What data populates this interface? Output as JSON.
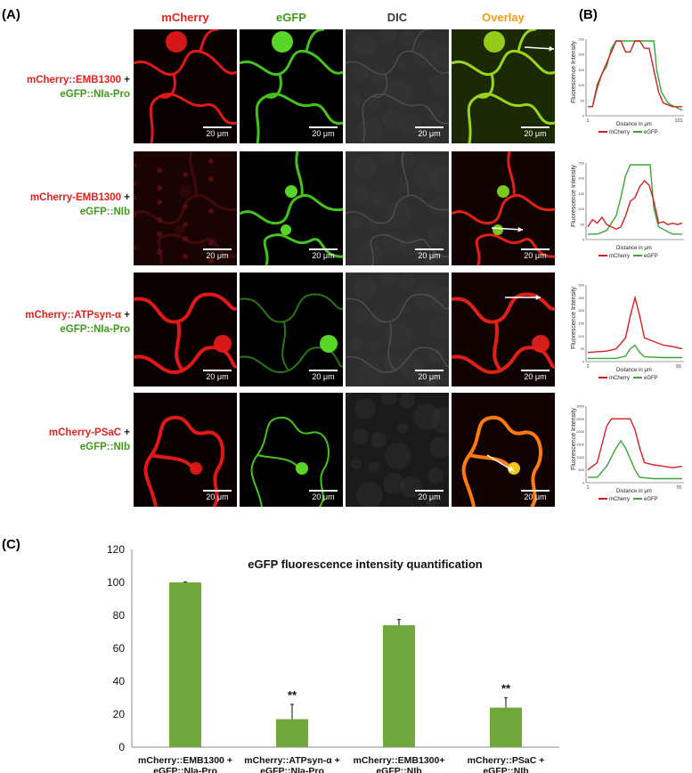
{
  "panels": {
    "a": "(A)",
    "b": "(B)",
    "c": "(C)"
  },
  "columns": [
    {
      "label": "mCherry",
      "color": "#e2221c"
    },
    {
      "label": "eGFP",
      "color": "#3f9a1c"
    },
    {
      "label": "DIC",
      "color": "#3a3a3a"
    },
    {
      "label": "Overlay",
      "color": "#f39c12"
    }
  ],
  "rows": [
    {
      "mcherry": "mCherry::EMB1300",
      "plus": " +",
      "egfp": "eGFP::NIa-Pro"
    },
    {
      "mcherry": "mCherry-EMB1300",
      "plus": " +",
      "egfp": "eGFP::NIb"
    },
    {
      "mcherry": "mCherry::ATPsyn-α",
      "plus": " +",
      "egfp": "eGFP::NIa-Pro"
    },
    {
      "mcherry": "mCherry-PSaC",
      "plus": " +",
      "egfp": "eGFP::NIb"
    }
  ],
  "scale_bar": "20 μm",
  "profiles": {
    "ylabel": "Fluorescence Intensity",
    "xlabel": "Distance in μm",
    "legend": [
      "mCherry",
      "eGFP"
    ],
    "colors": {
      "mcherry": "#d42020",
      "egfp": "#3aa63a"
    },
    "plots": [
      {
        "x_ticks": [
          "1",
          "101"
        ],
        "y_ticks": [
          "0",
          "50",
          "100",
          "150",
          "200",
          "250"
        ]
      },
      {
        "x_ticks": [],
        "y_ticks": [
          "0",
          "50",
          "100",
          "150",
          "200",
          "250"
        ]
      },
      {
        "x_ticks": [
          "1",
          "91"
        ],
        "y_ticks": [
          "0",
          "50",
          "100",
          "150",
          "200",
          "250",
          "300"
        ]
      },
      {
        "x_ticks": [
          "1",
          "70"
        ],
        "y_ticks": [
          "0",
          "500",
          "1000",
          "1500",
          "2000",
          "2500",
          "3000"
        ]
      }
    ]
  },
  "chart_data": {
    "type": "bar",
    "title": "eGFP  fluorescence intensity quantification",
    "categories": [
      [
        "mCherry::EMB1300 +",
        "eGFP::NIa-Pro"
      ],
      [
        "mCherry::ATPsyn-α +",
        "eGFP::NIa-Pro"
      ],
      [
        "mCherry::EMB1300+",
        "eGFP::NIb"
      ],
      [
        "mCherry::PSaC +",
        "eGFP::NIb"
      ]
    ],
    "values": [
      100,
      17,
      74,
      24
    ],
    "errors": [
      0.3,
      9,
      3.5,
      6
    ],
    "annotations": [
      "",
      "**",
      "",
      "**"
    ],
    "ylim": [
      0,
      120
    ],
    "yticks": [
      0,
      20,
      40,
      60,
      80,
      100,
      120
    ],
    "bar_color": "#70a83e"
  }
}
